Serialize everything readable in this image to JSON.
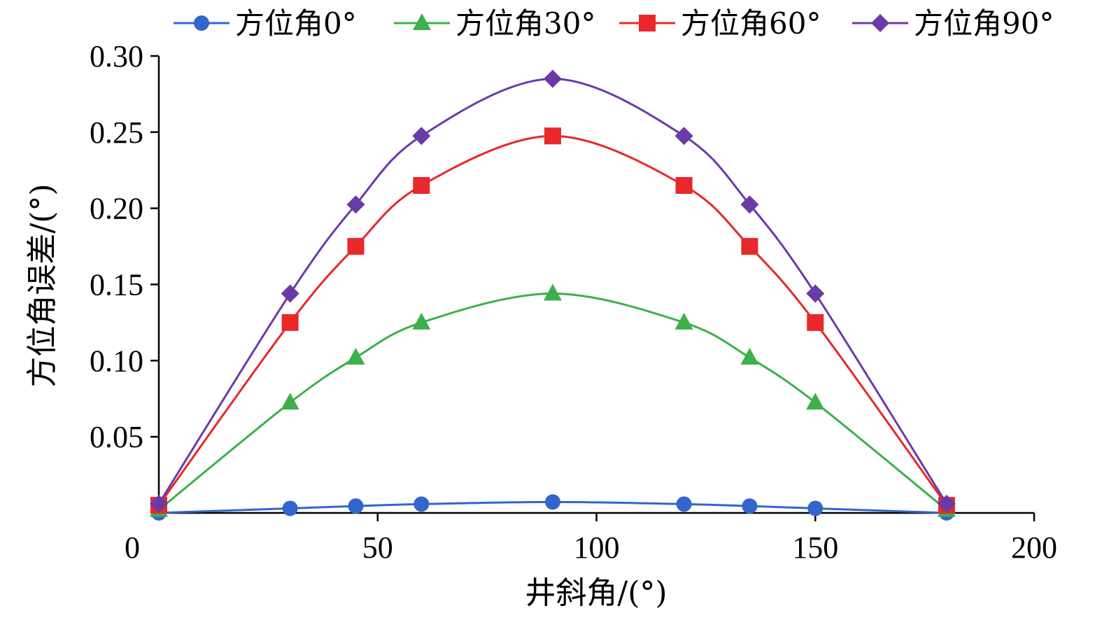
{
  "chart_data": {
    "type": "line",
    "title": "",
    "xlabel": "井斜角/(°)",
    "ylabel": "方位角误差/(°)",
    "xlim": [
      0,
      200
    ],
    "ylim": [
      0,
      0.3
    ],
    "x_ticks": [
      0,
      50,
      100,
      150,
      200
    ],
    "x_tick_labels": [
      "0",
      "50",
      "100",
      "150",
      "200"
    ],
    "y_ticks": [
      0.05,
      0.1,
      0.15,
      0.2,
      0.25,
      0.3
    ],
    "y_tick_labels": [
      "0.05",
      "0.10",
      "0.15",
      "0.20",
      "0.25",
      "0.30"
    ],
    "grid": false,
    "legend_position": "top",
    "smooth": true,
    "x": [
      0,
      30,
      45,
      60,
      90,
      120,
      135,
      150,
      180
    ],
    "series": [
      {
        "name": "方位角0°",
        "color": "#3366cc",
        "marker": "circle",
        "values": [
          0.0,
          0.003,
          0.0045,
          0.0058,
          0.0072,
          0.0058,
          0.0045,
          0.003,
          0.0
        ]
      },
      {
        "name": "方位角30°",
        "color": "#3cb04a",
        "marker": "triangle",
        "values": [
          0.002,
          0.0725,
          0.102,
          0.125,
          0.144,
          0.125,
          0.102,
          0.0725,
          0.002
        ]
      },
      {
        "name": "方位角60°",
        "color": "#e8282b",
        "marker": "square",
        "values": [
          0.005,
          0.125,
          0.175,
          0.215,
          0.2475,
          0.215,
          0.175,
          0.125,
          0.005
        ]
      },
      {
        "name": "方位角90°",
        "color": "#6a3ba8",
        "marker": "diamond",
        "values": [
          0.006,
          0.144,
          0.2025,
          0.2475,
          0.285,
          0.2475,
          0.2025,
          0.144,
          0.006
        ]
      }
    ]
  }
}
